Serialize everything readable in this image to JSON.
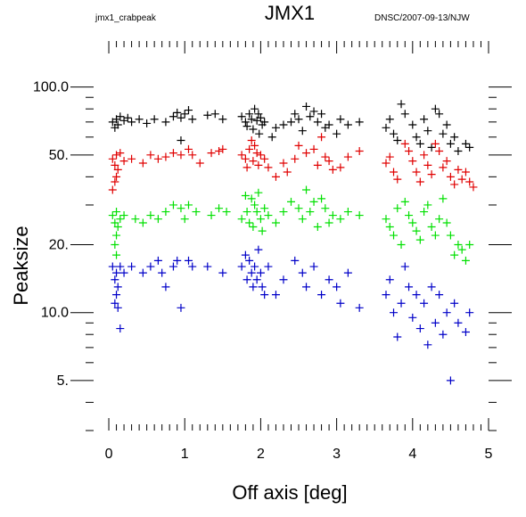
{
  "header": {
    "title": "JMX1",
    "left_tag": "jmx1_crabpeak",
    "right_tag": "DNSC/2007-09-13/NJW"
  },
  "chart_data": {
    "type": "scatter",
    "title": "JMX1",
    "xlabel": "Off axis [deg]",
    "ylabel": "Peaksize",
    "xlim": [
      -0.2,
      5.0
    ],
    "ylim": [
      3.0,
      160.0
    ],
    "yscale": "log",
    "marker": "plus",
    "x_ticks": [
      {
        "v": 0,
        "label": "0"
      },
      {
        "v": 1,
        "label": "1"
      },
      {
        "v": 2,
        "label": "2"
      },
      {
        "v": 3,
        "label": "3"
      },
      {
        "v": 4,
        "label": "4"
      },
      {
        "v": 5,
        "label": "5"
      }
    ],
    "y_ticks": [
      {
        "v": 100,
        "label": "100.0"
      },
      {
        "v": 50,
        "label": "50."
      },
      {
        "v": 20,
        "label": "20."
      },
      {
        "v": 10,
        "label": "10.0"
      },
      {
        "v": 5,
        "label": "5."
      }
    ],
    "series": [
      {
        "color": "#000000",
        "points": [
          [
            0.05,
            70
          ],
          [
            0.1,
            72
          ],
          [
            0.12,
            68
          ],
          [
            0.15,
            74
          ],
          [
            0.2,
            71
          ],
          [
            0.08,
            66
          ],
          [
            0.25,
            73
          ],
          [
            0.3,
            70
          ],
          [
            0.4,
            72
          ],
          [
            0.5,
            69
          ],
          [
            0.6,
            72
          ],
          [
            0.75,
            70
          ],
          [
            0.85,
            74
          ],
          [
            0.9,
            77
          ],
          [
            0.95,
            73
          ],
          [
            1.0,
            76
          ],
          [
            1.05,
            79
          ],
          [
            1.1,
            72
          ],
          [
            0.95,
            58
          ],
          [
            1.3,
            75
          ],
          [
            1.4,
            76
          ],
          [
            1.5,
            72
          ],
          [
            1.75,
            74
          ],
          [
            1.8,
            70
          ],
          [
            1.82,
            67
          ],
          [
            1.85,
            76
          ],
          [
            1.88,
            72
          ],
          [
            1.9,
            65
          ],
          [
            1.92,
            80
          ],
          [
            1.95,
            71
          ],
          [
            1.97,
            76
          ],
          [
            2.0,
            73
          ],
          [
            2.02,
            68
          ],
          [
            2.05,
            70
          ],
          [
            1.98,
            62
          ],
          [
            2.15,
            60
          ],
          [
            2.2,
            66
          ],
          [
            2.3,
            68
          ],
          [
            2.4,
            70
          ],
          [
            2.45,
            76
          ],
          [
            2.5,
            72
          ],
          [
            2.55,
            64
          ],
          [
            2.6,
            82
          ],
          [
            2.65,
            74
          ],
          [
            2.7,
            78
          ],
          [
            2.75,
            70
          ],
          [
            2.8,
            76
          ],
          [
            2.85,
            66
          ],
          [
            2.9,
            68
          ],
          [
            3.0,
            62
          ],
          [
            3.05,
            72
          ],
          [
            3.15,
            68
          ],
          [
            3.3,
            70
          ],
          [
            3.65,
            66
          ],
          [
            3.7,
            72
          ],
          [
            3.75,
            62
          ],
          [
            3.8,
            58
          ],
          [
            3.85,
            84
          ],
          [
            3.9,
            76
          ],
          [
            4.0,
            68
          ],
          [
            4.05,
            60
          ],
          [
            4.1,
            56
          ],
          [
            4.15,
            72
          ],
          [
            4.2,
            64
          ],
          [
            4.25,
            54
          ],
          [
            4.3,
            80
          ],
          [
            4.35,
            76
          ],
          [
            4.4,
            62
          ],
          [
            4.45,
            68
          ],
          [
            4.5,
            56
          ],
          [
            4.55,
            60
          ],
          [
            4.6,
            52
          ],
          [
            4.7,
            56
          ],
          [
            4.75,
            54
          ]
        ]
      },
      {
        "color": "#e00000",
        "points": [
          [
            0.05,
            48
          ],
          [
            0.08,
            45
          ],
          [
            0.1,
            50
          ],
          [
            0.12,
            43
          ],
          [
            0.15,
            51
          ],
          [
            0.1,
            40
          ],
          [
            0.05,
            35
          ],
          [
            0.08,
            38
          ],
          [
            0.2,
            47
          ],
          [
            0.3,
            48
          ],
          [
            0.45,
            46
          ],
          [
            0.55,
            50
          ],
          [
            0.65,
            48
          ],
          [
            0.75,
            49
          ],
          [
            0.85,
            51
          ],
          [
            0.95,
            50
          ],
          [
            1.05,
            53
          ],
          [
            1.1,
            50
          ],
          [
            1.2,
            46
          ],
          [
            1.35,
            51
          ],
          [
            1.45,
            52
          ],
          [
            1.5,
            53
          ],
          [
            1.75,
            50
          ],
          [
            1.8,
            48
          ],
          [
            1.82,
            44
          ],
          [
            1.85,
            53
          ],
          [
            1.88,
            58
          ],
          [
            1.9,
            47
          ],
          [
            1.92,
            55
          ],
          [
            1.95,
            51
          ],
          [
            1.97,
            45
          ],
          [
            2.0,
            50
          ],
          [
            2.05,
            48
          ],
          [
            2.1,
            44
          ],
          [
            2.2,
            40
          ],
          [
            2.3,
            46
          ],
          [
            2.35,
            42
          ],
          [
            2.45,
            48
          ],
          [
            2.5,
            55
          ],
          [
            2.6,
            51
          ],
          [
            2.7,
            53
          ],
          [
            2.75,
            45
          ],
          [
            2.8,
            60
          ],
          [
            2.85,
            49
          ],
          [
            2.9,
            47
          ],
          [
            2.95,
            43
          ],
          [
            3.05,
            44
          ],
          [
            3.15,
            49
          ],
          [
            3.3,
            52
          ],
          [
            3.65,
            46
          ],
          [
            3.7,
            49
          ],
          [
            3.75,
            42
          ],
          [
            3.8,
            39
          ],
          [
            3.9,
            56
          ],
          [
            3.95,
            52
          ],
          [
            4.0,
            47
          ],
          [
            4.05,
            42
          ],
          [
            4.1,
            38
          ],
          [
            4.15,
            50
          ],
          [
            4.2,
            45
          ],
          [
            4.25,
            41
          ],
          [
            4.3,
            56
          ],
          [
            4.35,
            52
          ],
          [
            4.4,
            44
          ],
          [
            4.45,
            47
          ],
          [
            4.5,
            40
          ],
          [
            4.55,
            37
          ],
          [
            4.6,
            43
          ],
          [
            4.65,
            39
          ],
          [
            4.7,
            42
          ],
          [
            4.75,
            38
          ],
          [
            4.8,
            36
          ]
        ]
      },
      {
        "color": "#00e000",
        "points": [
          [
            0.05,
            27
          ],
          [
            0.08,
            25
          ],
          [
            0.1,
            28
          ],
          [
            0.12,
            24
          ],
          [
            0.15,
            26
          ],
          [
            0.1,
            22
          ],
          [
            0.08,
            20
          ],
          [
            0.1,
            18
          ],
          [
            0.2,
            27
          ],
          [
            0.35,
            26
          ],
          [
            0.45,
            25
          ],
          [
            0.55,
            27
          ],
          [
            0.65,
            26
          ],
          [
            0.75,
            28
          ],
          [
            0.85,
            30
          ],
          [
            0.95,
            29
          ],
          [
            1.0,
            26
          ],
          [
            1.05,
            30
          ],
          [
            1.15,
            28
          ],
          [
            1.35,
            27
          ],
          [
            1.45,
            29
          ],
          [
            1.55,
            28
          ],
          [
            1.75,
            26
          ],
          [
            1.8,
            33
          ],
          [
            1.82,
            28
          ],
          [
            1.85,
            25
          ],
          [
            1.88,
            32
          ],
          [
            1.9,
            24
          ],
          [
            1.92,
            30
          ],
          [
            1.95,
            28
          ],
          [
            1.97,
            34
          ],
          [
            2.0,
            26
          ],
          [
            2.02,
            23
          ],
          [
            2.05,
            29
          ],
          [
            2.1,
            27
          ],
          [
            2.2,
            25
          ],
          [
            2.3,
            28
          ],
          [
            2.4,
            31
          ],
          [
            2.5,
            29
          ],
          [
            2.55,
            26
          ],
          [
            2.6,
            35
          ],
          [
            2.65,
            28
          ],
          [
            2.7,
            31
          ],
          [
            2.75,
            24
          ],
          [
            2.8,
            32
          ],
          [
            2.85,
            29
          ],
          [
            2.9,
            25
          ],
          [
            2.95,
            27
          ],
          [
            3.05,
            26
          ],
          [
            3.15,
            28
          ],
          [
            3.3,
            27
          ],
          [
            3.65,
            26
          ],
          [
            3.7,
            24
          ],
          [
            3.75,
            22
          ],
          [
            3.8,
            29
          ],
          [
            3.85,
            20
          ],
          [
            3.9,
            31
          ],
          [
            3.95,
            27
          ],
          [
            4.0,
            25
          ],
          [
            4.05,
            23
          ],
          [
            4.1,
            21
          ],
          [
            4.15,
            28
          ],
          [
            4.2,
            30
          ],
          [
            4.25,
            24
          ],
          [
            4.3,
            22
          ],
          [
            4.35,
            26
          ],
          [
            4.4,
            32
          ],
          [
            4.45,
            25
          ],
          [
            4.5,
            22
          ],
          [
            4.55,
            18
          ],
          [
            4.6,
            20
          ],
          [
            4.65,
            19
          ],
          [
            4.7,
            17
          ],
          [
            4.75,
            20
          ]
        ]
      },
      {
        "color": "#0000c8",
        "points": [
          [
            0.05,
            16
          ],
          [
            0.08,
            14
          ],
          [
            0.1,
            15
          ],
          [
            0.12,
            13
          ],
          [
            0.15,
            16
          ],
          [
            0.1,
            12
          ],
          [
            0.08,
            11
          ],
          [
            0.12,
            10.5
          ],
          [
            0.15,
            8.5
          ],
          [
            0.2,
            15
          ],
          [
            0.3,
            16
          ],
          [
            0.45,
            15
          ],
          [
            0.55,
            16
          ],
          [
            0.65,
            17
          ],
          [
            0.7,
            15
          ],
          [
            0.75,
            13
          ],
          [
            0.85,
            16
          ],
          [
            0.9,
            17
          ],
          [
            0.95,
            10.5
          ],
          [
            1.05,
            17
          ],
          [
            1.1,
            16
          ],
          [
            1.3,
            16
          ],
          [
            1.5,
            15
          ],
          [
            1.75,
            16
          ],
          [
            1.8,
            18
          ],
          [
            1.82,
            14
          ],
          [
            1.85,
            17
          ],
          [
            1.88,
            15
          ],
          [
            1.9,
            13
          ],
          [
            1.92,
            16
          ],
          [
            1.95,
            14
          ],
          [
            1.97,
            19
          ],
          [
            2.0,
            15
          ],
          [
            2.02,
            13
          ],
          [
            2.05,
            12
          ],
          [
            2.1,
            16
          ],
          [
            2.2,
            12
          ],
          [
            2.3,
            14
          ],
          [
            2.45,
            17
          ],
          [
            2.55,
            15
          ],
          [
            2.6,
            13
          ],
          [
            2.7,
            16
          ],
          [
            2.8,
            12
          ],
          [
            2.9,
            14
          ],
          [
            3.0,
            13
          ],
          [
            3.05,
            11
          ],
          [
            3.15,
            15
          ],
          [
            3.3,
            10.5
          ],
          [
            3.65,
            12
          ],
          [
            3.7,
            14
          ],
          [
            3.75,
            10
          ],
          [
            3.8,
            7.8
          ],
          [
            3.85,
            11
          ],
          [
            3.9,
            16
          ],
          [
            3.95,
            13
          ],
          [
            4.0,
            9.5
          ],
          [
            4.05,
            12
          ],
          [
            4.1,
            8.5
          ],
          [
            4.15,
            11
          ],
          [
            4.2,
            7.2
          ],
          [
            4.25,
            13
          ],
          [
            4.3,
            9
          ],
          [
            4.35,
            12
          ],
          [
            4.4,
            8
          ],
          [
            4.45,
            10
          ],
          [
            4.5,
            5
          ],
          [
            4.55,
            11
          ],
          [
            4.6,
            9
          ],
          [
            4.7,
            8.2
          ],
          [
            4.75,
            10
          ]
        ]
      }
    ]
  }
}
